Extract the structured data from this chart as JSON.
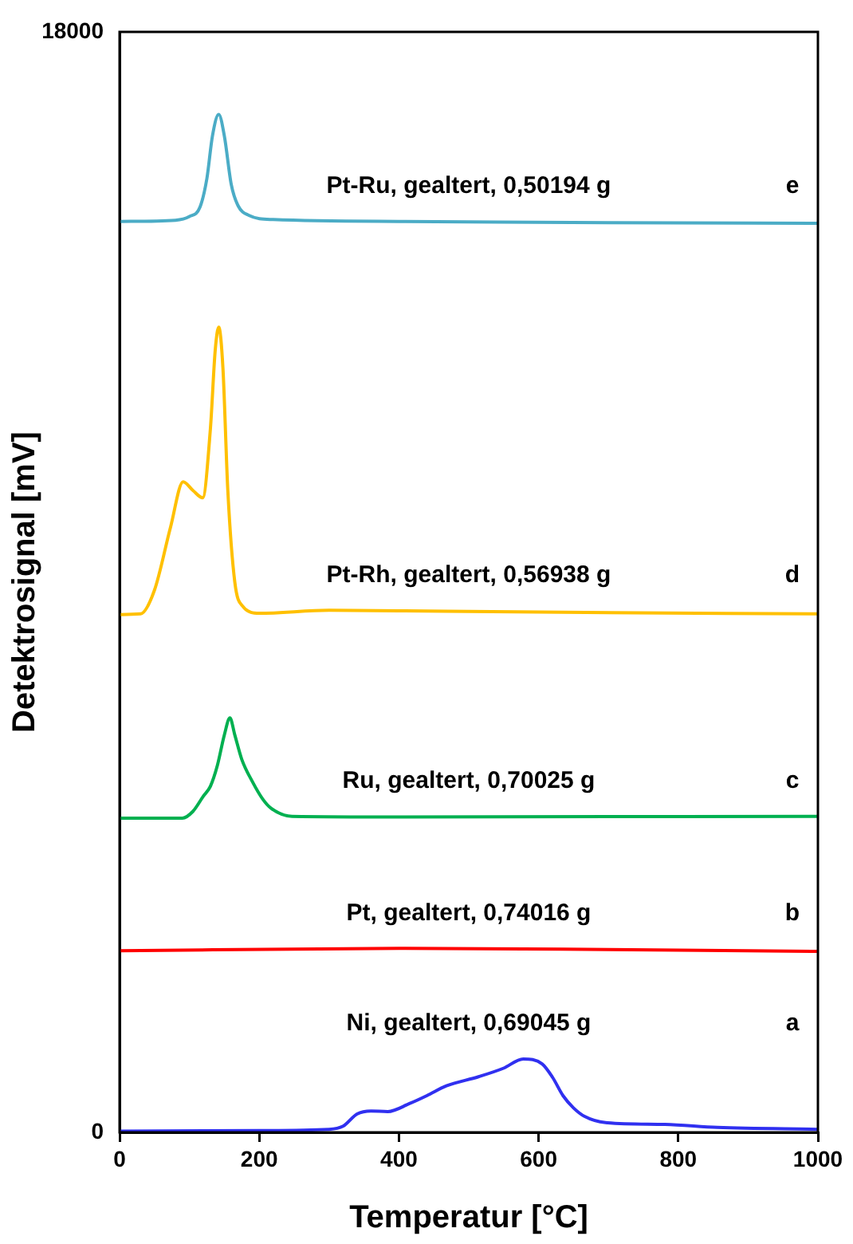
{
  "chart_data": {
    "type": "line",
    "xlabel": "Temperatur [°C]",
    "ylabel": "Detektrosignal [mV]",
    "xlim": [
      0,
      1000
    ],
    "xticks": [
      0,
      200,
      400,
      600,
      800,
      1000
    ],
    "ylim": [
      0,
      18000
    ],
    "yticks": [
      0,
      18000
    ],
    "grid": false,
    "legend": false,
    "marker": "none",
    "line_style": "solid",
    "series": [
      {
        "name": "Pt-Ru, gealtert, 0,50194 g",
        "color": "#4bacc6",
        "x": [
          0,
          80,
          100,
          115,
          125,
          133,
          142,
          150,
          160,
          170,
          185,
          220,
          400,
          700,
          1000
        ],
        "values": [
          14900,
          14920,
          14980,
          15130,
          15600,
          16300,
          16650,
          16300,
          15500,
          15150,
          15000,
          14930,
          14900,
          14880,
          14870
        ]
      },
      {
        "name": "Pt-Rh, gealtert, 0,56938 g",
        "color": "#ffc000",
        "x": [
          0,
          30,
          50,
          73,
          91,
          105,
          119,
          130,
          137,
          142,
          148,
          155,
          165,
          176,
          200,
          300,
          400,
          600,
          1000
        ],
        "values": [
          8470,
          8480,
          8870,
          9900,
          10640,
          10500,
          10380,
          11500,
          12800,
          13170,
          12500,
          10500,
          9000,
          8610,
          8490,
          8540,
          8530,
          8510,
          8480
        ]
      },
      {
        "name": "Ru, gealtert, 0,70025 g",
        "color": "#00b050",
        "x": [
          0,
          90,
          105,
          120,
          130,
          140,
          150,
          158,
          165,
          175,
          190,
          205,
          217,
          247,
          400,
          1000
        ],
        "values": [
          5140,
          5140,
          5250,
          5500,
          5660,
          6000,
          6500,
          6780,
          6500,
          6100,
          5740,
          5450,
          5300,
          5170,
          5160,
          5170
        ]
      },
      {
        "name": "Pt, gealtert, 0,74016 g",
        "color": "#ff0000",
        "x": [
          0,
          400,
          700,
          1000
        ],
        "values": [
          2970,
          3010,
          2990,
          2960
        ]
      },
      {
        "name": "Ni, gealtert, 0,69045 g",
        "color": "#3030f0",
        "x": [
          0,
          200,
          300,
          320,
          340,
          360,
          384,
          415,
          440,
          468,
          514,
          550,
          578,
          605,
          620,
          635,
          650,
          666,
          696,
          781,
          856,
          1000
        ],
        "values": [
          20,
          30,
          50,
          100,
          300,
          350,
          340,
          470,
          600,
          760,
          910,
          1050,
          1200,
          1120,
          900,
          600,
          400,
          260,
          160,
          130,
          80,
          50
        ]
      }
    ],
    "annotations": [
      "e",
      "d",
      "c",
      "b",
      "a"
    ]
  }
}
